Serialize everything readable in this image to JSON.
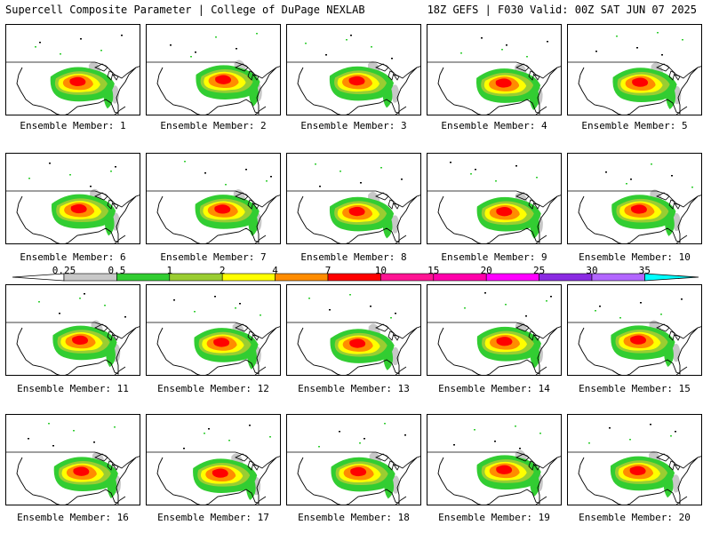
{
  "header": {
    "left": "Supercell Composite Parameter | College of DuPage NEXLAB",
    "right": "18Z GEFS | F030 Valid: 00Z SAT JUN 07 2025"
  },
  "member_label_prefix": "Ensemble Member: ",
  "members": [
    1,
    2,
    3,
    4,
    5,
    6,
    7,
    8,
    9,
    10,
    11,
    12,
    13,
    14,
    15,
    16,
    17,
    18,
    19,
    20
  ],
  "legend": {
    "labels": [
      "0.25",
      "0.5",
      "1",
      "2",
      "4",
      "7",
      "10",
      "15",
      "20",
      "25",
      "30",
      "35"
    ],
    "colors": [
      "#c8c8c8",
      "#32cd32",
      "#9acd32",
      "#ffff00",
      "#ff8c00",
      "#ff0000",
      "#ff1493",
      "#ff00aa",
      "#ff00ff",
      "#8a2be2",
      "#b266ff",
      "#00ffff"
    ]
  }
}
